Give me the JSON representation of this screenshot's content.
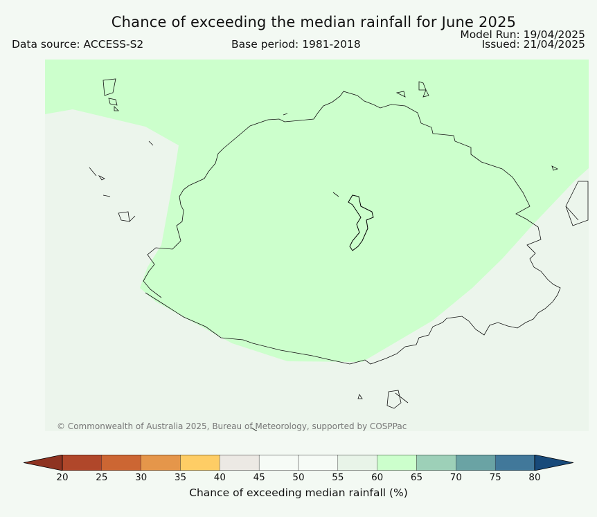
{
  "title": "Chance of exceeding the median rainfall for June 2025",
  "data_source": "Data source: ACCESS-S2",
  "base_period": "Base period: 1981-2018",
  "model_run": "Model Run: 19/04/2025",
  "issued": "Issued: 21/04/2025",
  "credit": "© Commonwealth of Australia 2025, Bureau of Meteorology, supported by COSPPac",
  "legend": {
    "title": "Chance of exceeding median rainfall (%)",
    "ticks": [
      "20",
      "25",
      "30",
      "35",
      "40",
      "45",
      "50",
      "55",
      "60",
      "65",
      "70",
      "75",
      "80"
    ],
    "colors": [
      "#b0472a",
      "#cc6633",
      "#e5964a",
      "#fecd65",
      "#ece9e4",
      "#f6fbf6",
      "#f6fbf6",
      "#e8f4e8",
      "#ccffcc",
      "#9dd0b8",
      "#6aa3a4",
      "#41789a",
      "#1a4e80"
    ],
    "under_color": "#8e3321",
    "over_color": "#184a7a"
  },
  "map": {
    "background_category": "45-60",
    "highlight_category": "60-65",
    "highlight_color": "#ccffcc",
    "background_color": "#ecf5ec"
  }
}
